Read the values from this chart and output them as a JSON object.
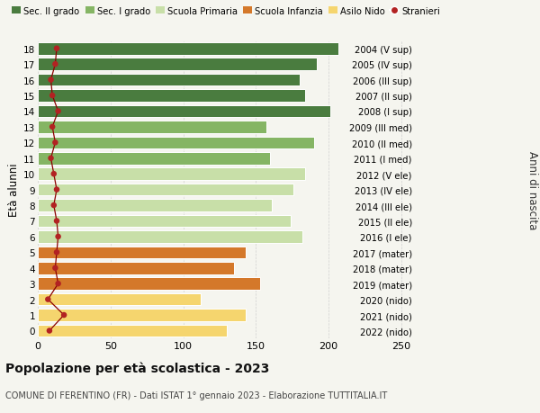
{
  "ages": [
    0,
    1,
    2,
    3,
    4,
    5,
    6,
    7,
    8,
    9,
    10,
    11,
    12,
    13,
    14,
    15,
    16,
    17,
    18
  ],
  "right_labels": [
    "2022 (nido)",
    "2021 (nido)",
    "2020 (nido)",
    "2019 (mater)",
    "2018 (mater)",
    "2017 (mater)",
    "2016 (I ele)",
    "2015 (II ele)",
    "2014 (III ele)",
    "2013 (IV ele)",
    "2012 (V ele)",
    "2011 (I med)",
    "2010 (II med)",
    "2009 (III med)",
    "2008 (I sup)",
    "2007 (II sup)",
    "2006 (III sup)",
    "2005 (IV sup)",
    "2004 (V sup)"
  ],
  "bar_values": [
    130,
    143,
    112,
    153,
    135,
    143,
    182,
    174,
    161,
    176,
    184,
    160,
    190,
    157,
    201,
    184,
    180,
    192,
    207
  ],
  "bar_colors": [
    "#f5d56e",
    "#f5d56e",
    "#f5d56e",
    "#d4782a",
    "#d4782a",
    "#d4782a",
    "#c8dfa8",
    "#c8dfa8",
    "#c8dfa8",
    "#c8dfa8",
    "#c8dfa8",
    "#85b564",
    "#85b564",
    "#85b564",
    "#4a7c3f",
    "#4a7c3f",
    "#4a7c3f",
    "#4a7c3f",
    "#4a7c3f"
  ],
  "stranieri_values": [
    8,
    18,
    7,
    14,
    12,
    13,
    14,
    13,
    11,
    13,
    11,
    9,
    12,
    10,
    14,
    10,
    9,
    12,
    13
  ],
  "legend_labels": [
    "Sec. II grado",
    "Sec. I grado",
    "Scuola Primaria",
    "Scuola Infanzia",
    "Asilo Nido",
    "Stranieri"
  ],
  "legend_colors": [
    "#4a7c3f",
    "#85b564",
    "#c8dfa8",
    "#d4782a",
    "#f5d56e",
    "#b22222"
  ],
  "ylabel": "Età alunni",
  "right_ylabel": "Anni di nascita",
  "title": "Popolazione per età scolastica - 2023",
  "subtitle": "COMUNE DI FERENTINO (FR) - Dati ISTAT 1° gennaio 2023 - Elaborazione TUTTITALIA.IT",
  "xlim": [
    0,
    260
  ],
  "xticks": [
    0,
    50,
    100,
    150,
    200,
    250
  ],
  "bar_height": 0.78,
  "background_color": "#f5f5ef",
  "grid_color": "#d0d0d0"
}
